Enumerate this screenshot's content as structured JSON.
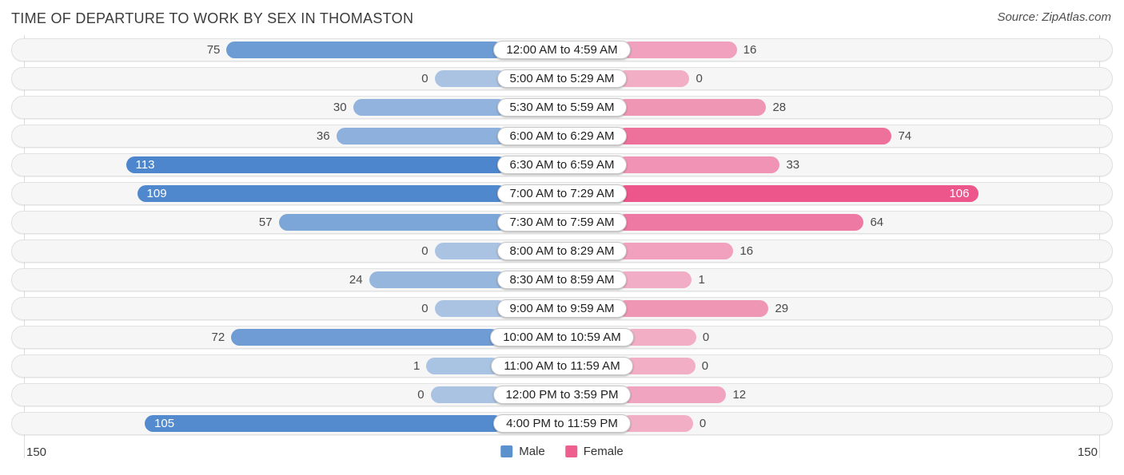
{
  "header": {
    "title": "TIME OF DEPARTURE TO WORK BY SEX IN THOMASTON",
    "source": "Source: ZipAtlas.com"
  },
  "axis": {
    "left_label": "150",
    "right_label": "150"
  },
  "legend": {
    "items": [
      {
        "label": "Male",
        "color": "#5b92ce"
      },
      {
        "label": "Female",
        "color": "#ee5e8f"
      }
    ]
  },
  "colors": {
    "male_rgb": "77,134,204",
    "female_rgb": "236,86,138",
    "min_alpha": 0.45,
    "row_bg": "#f6f6f6"
  },
  "chart_data": {
    "type": "bar",
    "variant": "bidirectional-horizontal",
    "title": "TIME OF DEPARTURE TO WORK BY SEX IN THOMASTON",
    "categories": [
      "12:00 AM to 4:59 AM",
      "5:00 AM to 5:29 AM",
      "5:30 AM to 5:59 AM",
      "6:00 AM to 6:29 AM",
      "6:30 AM to 6:59 AM",
      "7:00 AM to 7:29 AM",
      "7:30 AM to 7:59 AM",
      "8:00 AM to 8:29 AM",
      "8:30 AM to 8:59 AM",
      "9:00 AM to 9:59 AM",
      "10:00 AM to 10:59 AM",
      "11:00 AM to 11:59 AM",
      "12:00 PM to 3:59 PM",
      "4:00 PM to 11:59 PM"
    ],
    "series": [
      {
        "name": "Male",
        "side": "left",
        "values": [
          75,
          0,
          30,
          36,
          113,
          109,
          57,
          0,
          24,
          0,
          72,
          1,
          0,
          105
        ]
      },
      {
        "name": "Female",
        "side": "right",
        "values": [
          16,
          0,
          28,
          74,
          33,
          106,
          64,
          16,
          1,
          29,
          0,
          0,
          12,
          0
        ]
      }
    ],
    "value_axis": {
      "min": 0,
      "max": 150,
      "tick_labels": [
        "150",
        "150"
      ]
    },
    "inside_label_threshold": 100,
    "legend_position": "bottom-center",
    "grid": "edge-lines-only"
  }
}
